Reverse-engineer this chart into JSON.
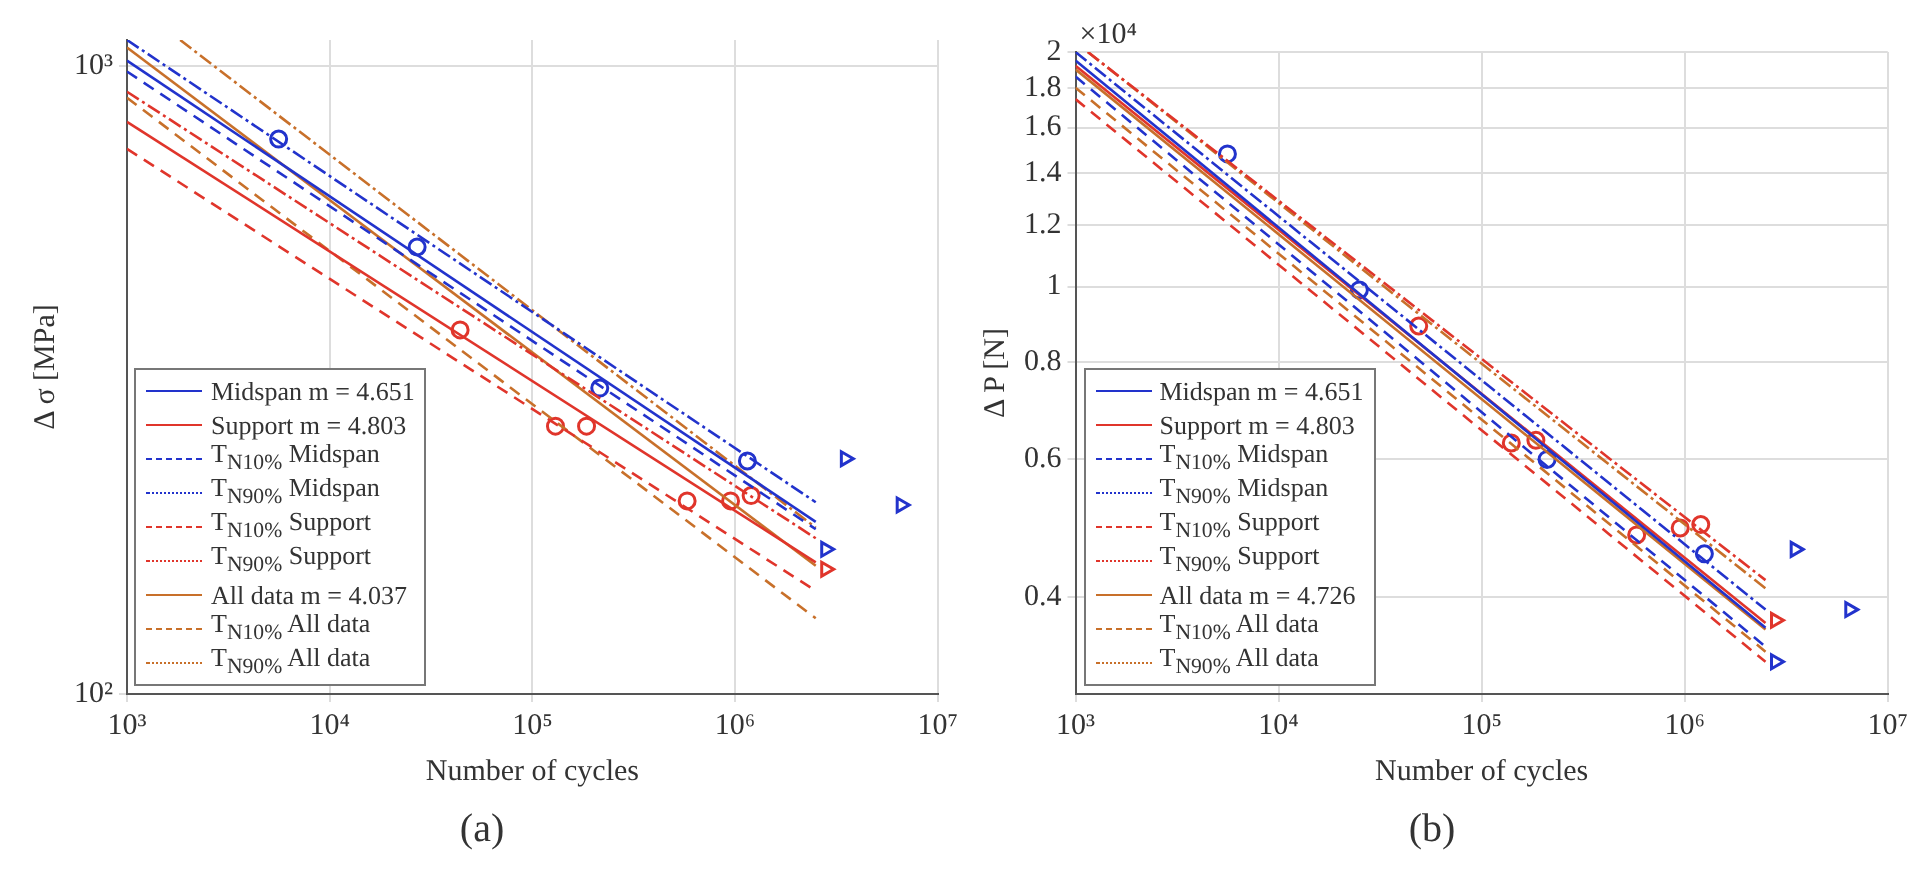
{
  "chart_data": [
    {
      "type": "line",
      "title": "(a)",
      "xlabel": "Number of cycles",
      "ylabel": "Δ σ [MPa]",
      "log": "xy",
      "grid": true,
      "legend": "bottom left",
      "xlim": [
        1000,
        10000000
      ],
      "xticks": [
        {
          "value": 1000,
          "label": "10³"
        },
        {
          "value": 10000,
          "label": "10⁴"
        },
        {
          "value": 100000,
          "label": "10⁵"
        },
        {
          "value": 1000000,
          "label": "10⁶"
        },
        {
          "value": 10000000,
          "label": "10⁷"
        }
      ],
      "ylim": [
        100,
        1100
      ],
      "yticks": [
        {
          "value": 100,
          "label": "10²"
        },
        {
          "value": 1000,
          "label": "10³"
        }
      ],
      "series": [
        {
          "name": "Midspan m = 4.651",
          "color": "#2233cc",
          "line_style": "solid",
          "x": [
            1000,
            2500000
          ],
          "values": [
            1020,
            188
          ]
        },
        {
          "name": "Support m = 4.803",
          "color": "#e0352b",
          "line_style": "solid",
          "x": [
            1000,
            2500000
          ],
          "values": [
            815,
            162
          ]
        },
        {
          "name": "T$_{N10%}$ Midspan",
          "color": "#2233cc",
          "line_style": "dashed",
          "x": [
            1000,
            2500000
          ],
          "values": [
            980,
            183
          ]
        },
        {
          "name": "T$_{N90%}$ Midspan",
          "color": "#2233cc",
          "line_style": "dotted",
          "x": [
            1000,
            2500000
          ],
          "values": [
            1100,
            202
          ]
        },
        {
          "name": "T$_{N10%}$ Support",
          "color": "#e0352b",
          "line_style": "dashed",
          "x": [
            1000,
            2500000
          ],
          "values": [
            738,
            146
          ]
        },
        {
          "name": "T$_{N90%}$ Support",
          "color": "#e0352b",
          "line_style": "dotted",
          "x": [
            1000,
            2500000
          ],
          "values": [
            910,
            177
          ]
        },
        {
          "name": "All data m = 4.037",
          "color": "#c8702a",
          "line_style": "solid",
          "x": [
            1000,
            2500000
          ],
          "values": [
            1070,
            160
          ]
        },
        {
          "name": "T$_{N10%}$ All data",
          "color": "#c8702a",
          "line_style": "dashed",
          "x": [
            1000,
            2500000
          ],
          "values": [
            890,
            132
          ]
        },
        {
          "name": "T$_{N90%}$ All data",
          "color": "#c8702a",
          "line_style": "dotted",
          "x": [
            1830,
            2500000
          ],
          "values": [
            1100,
            184
          ]
        },
        {
          "type": "scatter",
          "marker": "circle",
          "color": "#2233cc",
          "x": [
            5600,
            27000,
            215000,
            1150000
          ],
          "values": [
            765,
            515,
            307,
            235
          ]
        },
        {
          "type": "scatter",
          "marker": "circle",
          "color": "#e0352b",
          "x": [
            44000,
            130000,
            185000,
            580000,
            950000,
            1200000
          ],
          "values": [
            380,
            267,
            267,
            203,
            203,
            207
          ]
        },
        {
          "type": "scatter",
          "marker": "triangle",
          "color": "#2233cc",
          "x": [
            3500000,
            6600000,
            2800000
          ],
          "values": [
            237,
            200,
            170
          ]
        },
        {
          "type": "scatter",
          "marker": "triangle",
          "color": "#e0352b",
          "x": [
            2800000
          ],
          "values": [
            158
          ]
        }
      ]
    },
    {
      "type": "line",
      "title": "(b)",
      "xlabel": "Number of cycles",
      "ylabel": "Δ P [N]",
      "annotations": [
        "×10⁴"
      ],
      "log": "xy",
      "grid": true,
      "legend": "bottom left",
      "xlim": [
        1000,
        10000000
      ],
      "xticks": [
        {
          "value": 1000,
          "label": "10³"
        },
        {
          "value": 10000,
          "label": "10⁴"
        },
        {
          "value": 100000,
          "label": "10⁵"
        },
        {
          "value": 1000000,
          "label": "10⁶"
        },
        {
          "value": 10000000,
          "label": "10⁷"
        }
      ],
      "ylim": [
        0.3,
        2
      ],
      "yticks": [
        0.4,
        0.6,
        0.8,
        1,
        1.2,
        1.4,
        1.6,
        1.8,
        2
      ],
      "series": [
        {
          "name": "Midspan m = 4.651",
          "color": "#2233cc",
          "line_style": "solid",
          "x": [
            1000,
            2500000
          ],
          "values": [
            1.95,
            0.365
          ]
        },
        {
          "name": "Support m = 4.803",
          "color": "#e0352b",
          "line_style": "solid",
          "x": [
            1000,
            2500000
          ],
          "values": [
            1.92,
            0.37
          ]
        },
        {
          "name": "T$_{N10%}$ Midspan",
          "color": "#2233cc",
          "line_style": "dashed",
          "x": [
            1000,
            2500000
          ],
          "values": [
            1.86,
            0.345
          ]
        },
        {
          "name": "T$_{N90%}$ Midspan",
          "color": "#2233cc",
          "line_style": "dotted",
          "x": [
            1000,
            2500000
          ],
          "values": [
            2,
            0.385
          ]
        },
        {
          "name": "T$_{N10%}$ Support",
          "color": "#e0352b",
          "line_style": "dashed",
          "x": [
            1000,
            2500000
          ],
          "values": [
            1.74,
            0.33
          ]
        },
        {
          "name": "T$_{N90%}$ Support",
          "color": "#e0352b",
          "line_style": "dotted",
          "x": [
            1150,
            2500000
          ],
          "values": [
            2,
            0.42
          ]
        },
        {
          "name": "All data m = 4.726",
          "color": "#c8702a",
          "line_style": "solid",
          "x": [
            1000,
            2500000
          ],
          "values": [
            1.9,
            0.363
          ]
        },
        {
          "name": "T$_{N10%}$ All data",
          "color": "#c8702a",
          "line_style": "dashed",
          "x": [
            1000,
            2500000
          ],
          "values": [
            1.8,
            0.34
          ]
        },
        {
          "name": "T$_{N90%}$ All data",
          "color": "#c8702a",
          "line_style": "dotted",
          "x": [
            1150,
            2500000
          ],
          "values": [
            2,
            0.41
          ]
        },
        {
          "type": "scatter",
          "marker": "circle",
          "color": "#2233cc",
          "x": [
            5600,
            25000,
            210000,
            1250000
          ],
          "values": [
            1.48,
            0.99,
            0.6,
            0.454
          ]
        },
        {
          "type": "scatter",
          "marker": "circle",
          "color": "#e0352b",
          "x": [
            49000,
            140000,
            185000,
            580000,
            950000,
            1200000
          ],
          "values": [
            0.89,
            0.63,
            0.635,
            0.48,
            0.49,
            0.495
          ]
        },
        {
          "type": "scatter",
          "marker": "triangle",
          "color": "#2233cc",
          "x": [
            3500000,
            6500000,
            2800000
          ],
          "values": [
            0.46,
            0.385,
            0.33
          ]
        },
        {
          "type": "scatter",
          "marker": "triangle",
          "color": "#e0352b",
          "x": [
            2800000
          ],
          "values": [
            0.373
          ]
        }
      ]
    }
  ]
}
